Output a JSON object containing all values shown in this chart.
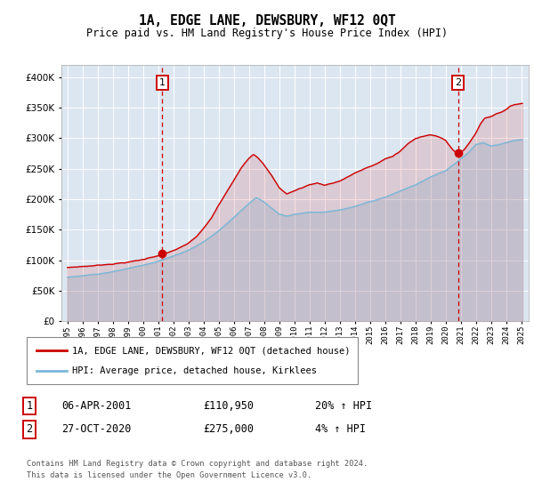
{
  "title": "1A, EDGE LANE, DEWSBURY, WF12 0QT",
  "subtitle": "Price paid vs. HM Land Registry's House Price Index (HPI)",
  "plot_bg_color": "#dce6f1",
  "line1_color": "#cc0000",
  "line2_color": "#7ab8d9",
  "vline_color": "#cc0000",
  "marker1_date_x": 2001.27,
  "marker2_date_x": 2020.83,
  "marker1_y": 110950,
  "marker2_y": 275000,
  "sale1_label": "06-APR-2001",
  "sale1_price": "£110,950",
  "sale1_hpi": "20% ↑ HPI",
  "sale2_label": "27-OCT-2020",
  "sale2_price": "£275,000",
  "sale2_hpi": "4% ↑ HPI",
  "legend1": "1A, EDGE LANE, DEWSBURY, WF12 0QT (detached house)",
  "legend2": "HPI: Average price, detached house, Kirklees",
  "footer1": "Contains HM Land Registry data © Crown copyright and database right 2024.",
  "footer2": "This data is licensed under the Open Government Licence v3.0.",
  "ylim": [
    0,
    420000
  ],
  "yticks": [
    0,
    50000,
    100000,
    150000,
    200000,
    250000,
    300000,
    350000,
    400000
  ],
  "xlim_start": 1994.6,
  "xlim_end": 2025.5,
  "xticks": [
    1995,
    1996,
    1997,
    1998,
    1999,
    2000,
    2001,
    2002,
    2003,
    2004,
    2005,
    2006,
    2007,
    2008,
    2009,
    2010,
    2011,
    2012,
    2013,
    2014,
    2015,
    2016,
    2017,
    2018,
    2019,
    2020,
    2021,
    2022,
    2023,
    2024,
    2025
  ]
}
